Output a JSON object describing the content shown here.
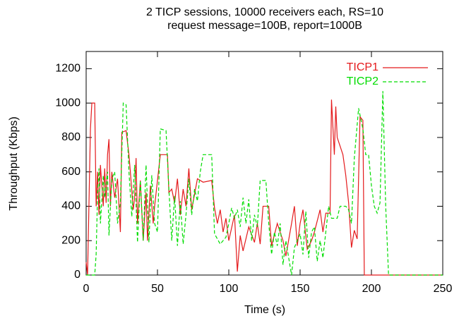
{
  "chart_data": {
    "type": "line",
    "title": "2 TICP sessions, 10000 receivers each, RS=10",
    "subtitle": "request message=100B, report=1000B",
    "xlabel": "Time (s)",
    "ylabel": "Throughput (Kbps)",
    "xlim": [
      0,
      250
    ],
    "xticks": [
      0,
      50,
      100,
      150,
      200,
      250
    ],
    "ylim": [
      0,
      1300
    ],
    "yticks": [
      0,
      200,
      400,
      600,
      800,
      1000,
      1200
    ],
    "legend": "top-right",
    "series": [
      {
        "name": "TICP1",
        "color": "#e41a1c",
        "dash": "solid",
        "x": [
          0,
          1,
          3,
          4,
          6,
          7,
          8,
          9,
          10,
          12,
          13,
          14,
          15,
          16,
          17,
          18,
          20,
          22,
          24,
          25,
          28,
          30,
          31,
          33,
          34,
          35,
          36,
          38,
          40,
          42,
          43,
          45,
          47,
          48,
          50,
          52,
          57,
          58,
          60,
          62,
          64,
          66,
          68,
          70,
          72,
          74,
          76,
          78,
          82,
          88,
          90,
          92,
          94,
          96,
          98,
          100,
          104,
          106,
          108,
          110,
          114,
          118,
          120,
          122,
          124,
          128,
          130,
          134,
          138,
          140,
          144,
          146,
          148,
          150,
          152,
          155,
          158,
          160,
          164,
          166,
          168,
          171,
          172,
          174,
          175,
          176,
          178,
          180,
          182,
          184,
          186,
          188,
          190,
          192,
          194,
          195,
          250
        ],
        "values": [
          75,
          0,
          850,
          1000,
          1000,
          400,
          600,
          350,
          640,
          400,
          620,
          420,
          700,
          790,
          400,
          600,
          450,
          560,
          250,
          830,
          840,
          700,
          600,
          380,
          450,
          680,
          300,
          550,
          200,
          480,
          200,
          520,
          300,
          400,
          550,
          700,
          700,
          480,
          500,
          420,
          560,
          350,
          500,
          400,
          620,
          380,
          470,
          560,
          540,
          550,
          390,
          300,
          380,
          250,
          330,
          200,
          350,
          20,
          230,
          140,
          280,
          190,
          300,
          180,
          400,
          400,
          170,
          300,
          200,
          110,
          300,
          400,
          170,
          300,
          380,
          150,
          200,
          250,
          380,
          250,
          360,
          360,
          1020,
          700,
          980,
          800,
          750,
          700,
          580,
          420,
          160,
          260,
          210,
          920,
          900,
          0,
          0
        ]
      },
      {
        "name": "TICP2",
        "color": "#00dd00",
        "dash": "dashed",
        "x": [
          0,
          6,
          7,
          8,
          9,
          10,
          12,
          13,
          15,
          16,
          18,
          20,
          22,
          24,
          26,
          28,
          30,
          32,
          34,
          36,
          38,
          40,
          42,
          44,
          46,
          48,
          50,
          52,
          56,
          58,
          60,
          62,
          64,
          66,
          68,
          70,
          72,
          74,
          76,
          78,
          80,
          82,
          88,
          90,
          94,
          98,
          100,
          102,
          104,
          106,
          108,
          110,
          112,
          114,
          116,
          118,
          120,
          122,
          126,
          128,
          130,
          132,
          134,
          136,
          138,
          140,
          144,
          146,
          148,
          150,
          152,
          154,
          156,
          158,
          160,
          162,
          164,
          166,
          168,
          170,
          172,
          176,
          178,
          182,
          184,
          186,
          188,
          191,
          194,
          196,
          198,
          200,
          202,
          204,
          206,
          208,
          210,
          212,
          250
        ],
        "values": [
          0,
          0,
          120,
          470,
          620,
          300,
          580,
          450,
          600,
          230,
          560,
          600,
          300,
          420,
          1000,
          990,
          600,
          340,
          640,
          190,
          550,
          200,
          640,
          190,
          580,
          300,
          250,
          850,
          840,
          500,
          200,
          460,
          170,
          430,
          180,
          350,
          560,
          350,
          500,
          430,
          600,
          700,
          700,
          240,
          180,
          220,
          300,
          390,
          330,
          380,
          280,
          450,
          300,
          440,
          200,
          350,
          280,
          550,
          550,
          300,
          120,
          250,
          170,
          300,
          60,
          200,
          0,
          160,
          200,
          240,
          120,
          370,
          100,
          250,
          280,
          80,
          200,
          100,
          250,
          400,
          330,
          330,
          400,
          400,
          380,
          300,
          680,
          970,
          850,
          700,
          700,
          520,
          400,
          360,
          420,
          1070,
          400,
          0,
          0
        ]
      }
    ]
  }
}
